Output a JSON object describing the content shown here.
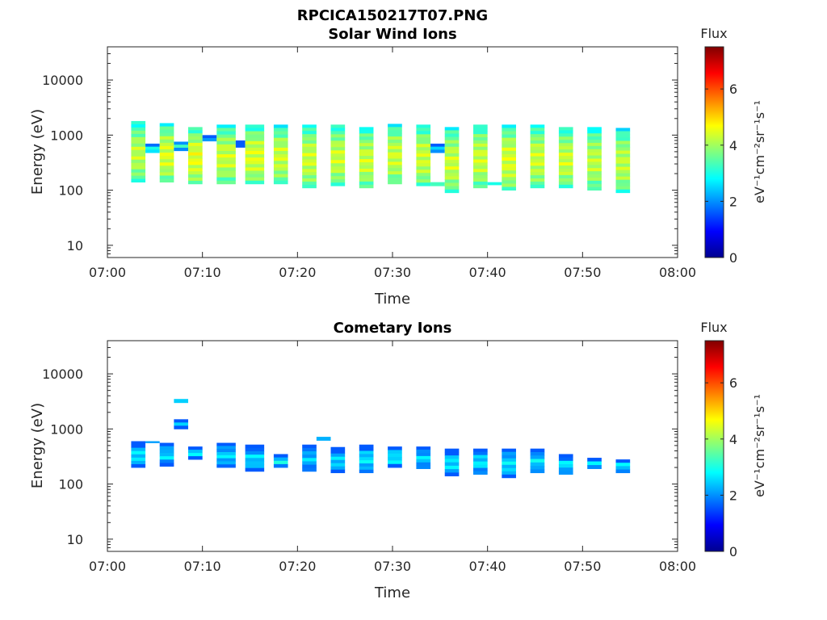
{
  "figure_title": "RPCICA150217T07.PNG",
  "chart_data": [
    {
      "type": "heatmap",
      "id": "solar",
      "title": "Solar Wind Ions",
      "xlabel": "Time",
      "ylabel": "Energy (eV)",
      "xlim": [
        "07:00",
        "08:00"
      ],
      "xticks": [
        "07:00",
        "07:10",
        "07:20",
        "07:30",
        "07:40",
        "07:50",
        "08:00"
      ],
      "ylim": [
        6,
        40000
      ],
      "yscale": "log",
      "yticks": [
        10,
        100,
        1000,
        10000
      ],
      "ytick_labels": [
        "10",
        "100",
        "1000",
        "10000"
      ],
      "colorbar": {
        "label": "Flux",
        "unit": "eV⁻¹cm⁻²sr⁻¹s⁻¹",
        "range": [
          0,
          7.5
        ],
        "ticks": [
          "0",
          "2",
          "4",
          "6"
        ]
      },
      "columns": [
        {
          "start": "07:02:30",
          "end": "07:04:00",
          "emin": 140,
          "emax": 1800,
          "flux": 4.2
        },
        {
          "start": "07:04:00",
          "end": "07:05:30",
          "emin": 480,
          "emax": 700,
          "flux": 3.2
        },
        {
          "start": "07:05:30",
          "end": "07:07:00",
          "emin": 140,
          "emax": 1650,
          "flux": 4.4
        },
        {
          "start": "07:07:00",
          "end": "07:08:30",
          "emin": 520,
          "emax": 760,
          "flux": 3.2
        },
        {
          "start": "07:08:30",
          "end": "07:10:00",
          "emin": 130,
          "emax": 1400,
          "flux": 4.5
        },
        {
          "start": "07:10:00",
          "end": "07:11:30",
          "emin": 780,
          "emax": 1000,
          "flux": 3.0
        },
        {
          "start": "07:11:30",
          "end": "07:13:30",
          "emin": 130,
          "emax": 1550,
          "flux": 4.3
        },
        {
          "start": "07:13:30",
          "end": "07:14:30",
          "emin": 600,
          "emax": 800,
          "flux": 2.6
        },
        {
          "start": "07:14:30",
          "end": "07:16:30",
          "emin": 130,
          "emax": 1550,
          "flux": 4.4
        },
        {
          "start": "07:17:30",
          "end": "07:19:00",
          "emin": 130,
          "emax": 1550,
          "flux": 4.3
        },
        {
          "start": "07:20:30",
          "end": "07:22:00",
          "emin": 110,
          "emax": 1550,
          "flux": 4.3
        },
        {
          "start": "07:23:30",
          "end": "07:25:00",
          "emin": 120,
          "emax": 1550,
          "flux": 4.3
        },
        {
          "start": "07:26:30",
          "end": "07:28:00",
          "emin": 110,
          "emax": 1400,
          "flux": 4.3
        },
        {
          "start": "07:29:30",
          "end": "07:31:00",
          "emin": 130,
          "emax": 1600,
          "flux": 4.3
        },
        {
          "start": "07:32:30",
          "end": "07:34:00",
          "emin": 120,
          "emax": 1550,
          "flux": 4.3
        },
        {
          "start": "07:34:00",
          "end": "07:35:30",
          "emin": 120,
          "emax": 140,
          "flux": 3.0
        },
        {
          "start": "07:34:00",
          "end": "07:35:30",
          "emin": 480,
          "emax": 700,
          "flux": 2.6
        },
        {
          "start": "07:35:30",
          "end": "07:37:00",
          "emin": 90,
          "emax": 1400,
          "flux": 4.3
        },
        {
          "start": "07:38:30",
          "end": "07:40:00",
          "emin": 110,
          "emax": 1550,
          "flux": 4.3
        },
        {
          "start": "07:40:00",
          "end": "07:41:30",
          "emin": 125,
          "emax": 140,
          "flux": 2.8
        },
        {
          "start": "07:41:30",
          "end": "07:43:00",
          "emin": 100,
          "emax": 1550,
          "flux": 4.4
        },
        {
          "start": "07:44:30",
          "end": "07:46:00",
          "emin": 110,
          "emax": 1550,
          "flux": 4.3
        },
        {
          "start": "07:47:30",
          "end": "07:49:00",
          "emin": 110,
          "emax": 1400,
          "flux": 4.3
        },
        {
          "start": "07:50:30",
          "end": "07:52:00",
          "emin": 100,
          "emax": 1400,
          "flux": 4.2
        },
        {
          "start": "07:53:30",
          "end": "07:55:00",
          "emin": 90,
          "emax": 1350,
          "flux": 4.2
        }
      ]
    },
    {
      "type": "heatmap",
      "id": "cometary",
      "title": "Cometary Ions",
      "xlabel": "Time",
      "ylabel": "Energy (eV)",
      "xlim": [
        "07:00",
        "08:00"
      ],
      "xticks": [
        "07:00",
        "07:10",
        "07:20",
        "07:30",
        "07:40",
        "07:50",
        "08:00"
      ],
      "ylim": [
        6,
        40000
      ],
      "yscale": "log",
      "yticks": [
        10,
        100,
        1000,
        10000
      ],
      "ytick_labels": [
        "10",
        "100",
        "1000",
        "10000"
      ],
      "colorbar": {
        "label": "Flux",
        "unit": "eV⁻¹cm⁻²sr⁻¹s⁻¹",
        "range": [
          0,
          7.5
        ],
        "ticks": [
          "0",
          "2",
          "4",
          "6"
        ]
      },
      "columns": [
        {
          "start": "07:02:30",
          "end": "07:04:00",
          "emin": 200,
          "emax": 600,
          "flux": 2.6
        },
        {
          "start": "07:04:00",
          "end": "07:05:30",
          "emin": 560,
          "emax": 600,
          "flux": 2.2
        },
        {
          "start": "07:05:30",
          "end": "07:07:00",
          "emin": 210,
          "emax": 560,
          "flux": 2.5
        },
        {
          "start": "07:07:00",
          "end": "07:08:30",
          "emin": 1000,
          "emax": 1500,
          "flux": 2.4
        },
        {
          "start": "07:07:00",
          "end": "07:08:30",
          "emin": 3000,
          "emax": 3500,
          "flux": 2.2
        },
        {
          "start": "07:08:30",
          "end": "07:10:00",
          "emin": 280,
          "emax": 480,
          "flux": 2.6
        },
        {
          "start": "07:11:30",
          "end": "07:13:30",
          "emin": 200,
          "emax": 560,
          "flux": 2.5
        },
        {
          "start": "07:14:30",
          "end": "07:16:30",
          "emin": 170,
          "emax": 520,
          "flux": 2.5
        },
        {
          "start": "07:17:30",
          "end": "07:19:00",
          "emin": 200,
          "emax": 350,
          "flux": 2.8
        },
        {
          "start": "07:20:30",
          "end": "07:22:00",
          "emin": 170,
          "emax": 520,
          "flux": 2.4
        },
        {
          "start": "07:22:00",
          "end": "07:23:30",
          "emin": 620,
          "emax": 720,
          "flux": 2.3
        },
        {
          "start": "07:23:30",
          "end": "07:25:00",
          "emin": 160,
          "emax": 470,
          "flux": 2.5
        },
        {
          "start": "07:26:30",
          "end": "07:28:00",
          "emin": 160,
          "emax": 520,
          "flux": 2.6
        },
        {
          "start": "07:29:30",
          "end": "07:31:00",
          "emin": 200,
          "emax": 480,
          "flux": 2.7
        },
        {
          "start": "07:32:30",
          "end": "07:34:00",
          "emin": 190,
          "emax": 480,
          "flux": 2.5
        },
        {
          "start": "07:35:30",
          "end": "07:37:00",
          "emin": 140,
          "emax": 440,
          "flux": 2.6
        },
        {
          "start": "07:38:30",
          "end": "07:40:00",
          "emin": 150,
          "emax": 440,
          "flux": 2.6
        },
        {
          "start": "07:41:30",
          "end": "07:43:00",
          "emin": 130,
          "emax": 440,
          "flux": 2.6
        },
        {
          "start": "07:44:30",
          "end": "07:46:00",
          "emin": 160,
          "emax": 440,
          "flux": 2.6
        },
        {
          "start": "07:47:30",
          "end": "07:49:00",
          "emin": 150,
          "emax": 350,
          "flux": 2.6
        },
        {
          "start": "07:50:30",
          "end": "07:52:00",
          "emin": 190,
          "emax": 300,
          "flux": 2.7
        },
        {
          "start": "07:53:30",
          "end": "07:55:00",
          "emin": 160,
          "emax": 280,
          "flux": 2.7
        }
      ]
    }
  ]
}
